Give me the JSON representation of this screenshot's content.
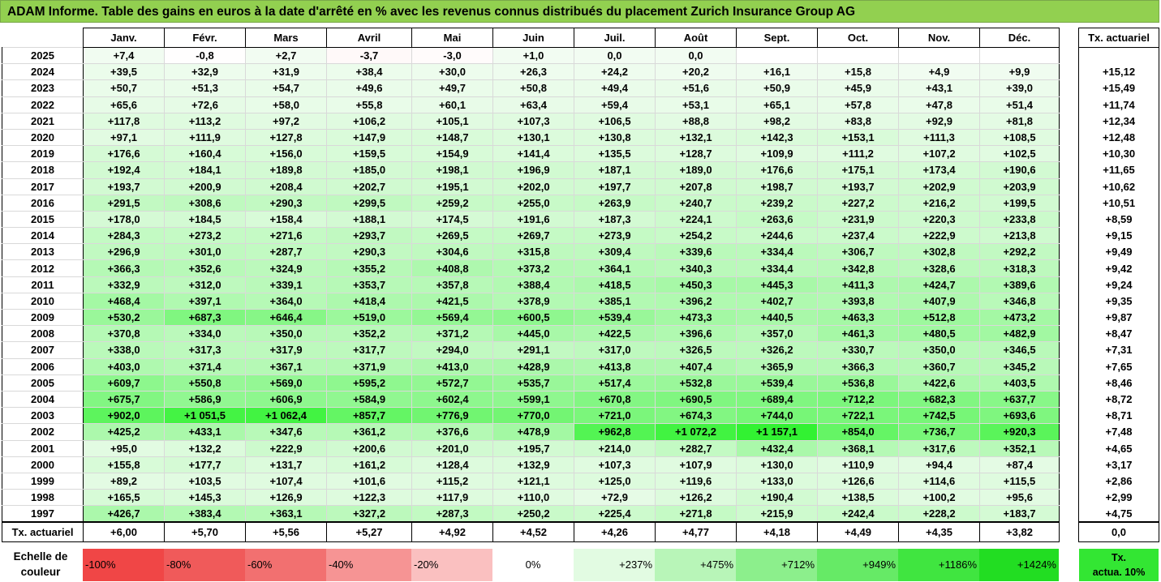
{
  "title": "ADAM Informe. Table des gains en euros à la date d'arrêté en % avec les revenus connus distribués du placement Zurich Insurance Group AG",
  "months": [
    "Janv.",
    "Févr.",
    "Mars",
    "Avril",
    "Mai",
    "Juin",
    "Juil.",
    "Août",
    "Sept.",
    "Oct.",
    "Nov.",
    "Déc."
  ],
  "side_header": "Tx. actuariel",
  "rows": [
    {
      "year": "2025",
      "values": [
        "+7,4",
        "-0,8",
        "+2,7",
        "-3,7",
        "-3,0",
        "+1,0",
        "0,0",
        "0,0",
        "",
        "",
        "",
        ""
      ],
      "tx": ""
    },
    {
      "year": "2024",
      "values": [
        "+39,5",
        "+32,9",
        "+31,9",
        "+38,4",
        "+30,0",
        "+26,3",
        "+24,2",
        "+20,2",
        "+16,1",
        "+15,8",
        "+4,9",
        "+9,9"
      ],
      "tx": "+15,12"
    },
    {
      "year": "2023",
      "values": [
        "+50,7",
        "+51,3",
        "+54,7",
        "+49,6",
        "+49,7",
        "+50,8",
        "+49,4",
        "+51,6",
        "+50,9",
        "+45,9",
        "+43,1",
        "+39,0"
      ],
      "tx": "+15,49"
    },
    {
      "year": "2022",
      "values": [
        "+65,6",
        "+72,6",
        "+58,0",
        "+55,8",
        "+60,1",
        "+63,4",
        "+59,4",
        "+53,1",
        "+65,1",
        "+57,8",
        "+47,8",
        "+51,4"
      ],
      "tx": "+11,74"
    },
    {
      "year": "2021",
      "values": [
        "+117,8",
        "+113,2",
        "+97,2",
        "+106,2",
        "+105,1",
        "+107,3",
        "+106,5",
        "+88,8",
        "+98,2",
        "+83,8",
        "+92,9",
        "+81,8"
      ],
      "tx": "+12,34"
    },
    {
      "year": "2020",
      "values": [
        "+97,1",
        "+111,9",
        "+127,8",
        "+147,9",
        "+148,7",
        "+130,1",
        "+130,8",
        "+132,1",
        "+142,3",
        "+153,1",
        "+111,3",
        "+108,5"
      ],
      "tx": "+12,48"
    },
    {
      "year": "2019",
      "values": [
        "+176,6",
        "+160,4",
        "+156,0",
        "+159,5",
        "+154,9",
        "+141,4",
        "+135,5",
        "+128,7",
        "+109,9",
        "+111,2",
        "+107,2",
        "+102,5"
      ],
      "tx": "+10,30"
    },
    {
      "year": "2018",
      "values": [
        "+192,4",
        "+184,1",
        "+189,8",
        "+185,0",
        "+198,1",
        "+196,9",
        "+187,1",
        "+189,0",
        "+176,6",
        "+175,1",
        "+173,4",
        "+190,6"
      ],
      "tx": "+11,65"
    },
    {
      "year": "2017",
      "values": [
        "+193,7",
        "+200,9",
        "+208,4",
        "+202,7",
        "+195,1",
        "+202,0",
        "+197,7",
        "+207,8",
        "+198,7",
        "+193,7",
        "+202,9",
        "+203,9"
      ],
      "tx": "+10,62"
    },
    {
      "year": "2016",
      "values": [
        "+291,5",
        "+308,6",
        "+290,3",
        "+299,5",
        "+259,2",
        "+255,0",
        "+263,9",
        "+240,7",
        "+239,2",
        "+227,2",
        "+216,2",
        "+199,5"
      ],
      "tx": "+10,51"
    },
    {
      "year": "2015",
      "values": [
        "+178,0",
        "+184,5",
        "+158,4",
        "+188,1",
        "+174,5",
        "+191,6",
        "+187,3",
        "+224,1",
        "+263,6",
        "+231,9",
        "+220,3",
        "+233,8"
      ],
      "tx": "+8,59"
    },
    {
      "year": "2014",
      "values": [
        "+284,3",
        "+273,2",
        "+271,6",
        "+293,7",
        "+269,5",
        "+269,7",
        "+273,9",
        "+254,2",
        "+244,6",
        "+237,4",
        "+222,9",
        "+213,8"
      ],
      "tx": "+9,15"
    },
    {
      "year": "2013",
      "values": [
        "+296,9",
        "+301,0",
        "+287,7",
        "+290,3",
        "+304,6",
        "+315,8",
        "+309,4",
        "+339,6",
        "+334,4",
        "+306,7",
        "+302,8",
        "+292,2"
      ],
      "tx": "+9,49"
    },
    {
      "year": "2012",
      "values": [
        "+366,3",
        "+352,6",
        "+324,9",
        "+355,2",
        "+408,8",
        "+373,2",
        "+364,1",
        "+340,3",
        "+334,4",
        "+342,8",
        "+328,6",
        "+318,3"
      ],
      "tx": "+9,42"
    },
    {
      "year": "2011",
      "values": [
        "+332,9",
        "+312,0",
        "+339,1",
        "+353,7",
        "+357,8",
        "+388,4",
        "+418,5",
        "+450,3",
        "+445,3",
        "+411,3",
        "+424,7",
        "+389,6"
      ],
      "tx": "+9,24"
    },
    {
      "year": "2010",
      "values": [
        "+468,4",
        "+397,1",
        "+364,0",
        "+418,4",
        "+421,5",
        "+378,9",
        "+385,1",
        "+396,2",
        "+402,7",
        "+393,8",
        "+407,9",
        "+346,8"
      ],
      "tx": "+9,35"
    },
    {
      "year": "2009",
      "values": [
        "+530,2",
        "+687,3",
        "+646,4",
        "+519,0",
        "+569,4",
        "+600,5",
        "+539,4",
        "+473,3",
        "+440,5",
        "+463,3",
        "+512,8",
        "+473,2"
      ],
      "tx": "+9,87"
    },
    {
      "year": "2008",
      "values": [
        "+370,8",
        "+334,0",
        "+350,0",
        "+352,2",
        "+371,2",
        "+445,0",
        "+422,5",
        "+396,6",
        "+357,0",
        "+461,3",
        "+480,5",
        "+482,9"
      ],
      "tx": "+8,47"
    },
    {
      "year": "2007",
      "values": [
        "+338,0",
        "+317,3",
        "+317,9",
        "+317,7",
        "+294,0",
        "+291,1",
        "+317,0",
        "+326,5",
        "+326,2",
        "+330,7",
        "+350,0",
        "+346,5"
      ],
      "tx": "+7,31"
    },
    {
      "year": "2006",
      "values": [
        "+403,0",
        "+371,4",
        "+367,1",
        "+371,9",
        "+413,0",
        "+428,9",
        "+413,8",
        "+407,4",
        "+365,9",
        "+366,3",
        "+360,7",
        "+345,2"
      ],
      "tx": "+7,65"
    },
    {
      "year": "2005",
      "values": [
        "+609,7",
        "+550,8",
        "+569,0",
        "+595,2",
        "+572,7",
        "+535,7",
        "+517,4",
        "+532,8",
        "+539,4",
        "+536,8",
        "+422,6",
        "+403,5"
      ],
      "tx": "+8,46"
    },
    {
      "year": "2004",
      "values": [
        "+675,7",
        "+586,9",
        "+606,9",
        "+584,9",
        "+602,4",
        "+599,1",
        "+670,8",
        "+690,5",
        "+689,4",
        "+712,2",
        "+682,3",
        "+637,7"
      ],
      "tx": "+8,72"
    },
    {
      "year": "2003",
      "values": [
        "+902,0",
        "+1 051,5",
        "+1 062,4",
        "+857,7",
        "+776,9",
        "+770,0",
        "+721,0",
        "+674,3",
        "+744,0",
        "+722,1",
        "+742,5",
        "+693,6"
      ],
      "tx": "+8,71"
    },
    {
      "year": "2002",
      "values": [
        "+425,2",
        "+433,1",
        "+347,6",
        "+361,2",
        "+376,6",
        "+478,9",
        "+962,8",
        "+1 072,2",
        "+1 157,1",
        "+854,0",
        "+736,7",
        "+920,3"
      ],
      "tx": "+7,48"
    },
    {
      "year": "2001",
      "values": [
        "+95,0",
        "+132,2",
        "+222,9",
        "+200,6",
        "+201,0",
        "+195,7",
        "+214,0",
        "+282,7",
        "+432,4",
        "+368,1",
        "+317,6",
        "+352,1"
      ],
      "tx": "+4,65"
    },
    {
      "year": "2000",
      "values": [
        "+155,8",
        "+177,7",
        "+131,7",
        "+161,2",
        "+128,4",
        "+132,9",
        "+107,3",
        "+107,9",
        "+130,0",
        "+110,9",
        "+94,4",
        "+87,4"
      ],
      "tx": "+3,17"
    },
    {
      "year": "1999",
      "values": [
        "+89,2",
        "+103,5",
        "+107,4",
        "+101,6",
        "+115,2",
        "+121,1",
        "+125,0",
        "+119,6",
        "+133,0",
        "+126,6",
        "+114,6",
        "+115,5"
      ],
      "tx": "+2,86"
    },
    {
      "year": "1998",
      "values": [
        "+165,5",
        "+145,3",
        "+126,9",
        "+122,3",
        "+117,9",
        "+110,0",
        "+72,9",
        "+126,2",
        "+190,4",
        "+138,5",
        "+100,2",
        "+95,6"
      ],
      "tx": "+2,99"
    },
    {
      "year": "1997",
      "values": [
        "+426,7",
        "+383,4",
        "+363,1",
        "+327,2",
        "+287,3",
        "+250,2",
        "+225,4",
        "+271,8",
        "+215,9",
        "+242,4",
        "+228,2",
        "+183,7"
      ],
      "tx": "+4,75"
    }
  ],
  "footer": {
    "label": "Tx. actuariel",
    "values": [
      "+6,00",
      "+5,70",
      "+5,56",
      "+5,27",
      "+4,92",
      "+4,52",
      "+4,26",
      "+4,77",
      "+4,18",
      "+4,49",
      "+4,35",
      "+3,82"
    ],
    "tx": "0,0"
  },
  "legend": {
    "label_line1": "Echelle de",
    "label_line2": "couleur",
    "items": [
      {
        "text": "-100%",
        "color": "#f04646",
        "kind": "neg"
      },
      {
        "text": "-80%",
        "color": "#f05a5a",
        "kind": "neg"
      },
      {
        "text": "-60%",
        "color": "#f27070",
        "kind": "neg"
      },
      {
        "text": "-40%",
        "color": "#f69494",
        "kind": "neg"
      },
      {
        "text": "-20%",
        "color": "#fac0c0",
        "kind": "neg"
      },
      {
        "text": "0%",
        "color": "#ffffff",
        "kind": "zero"
      },
      {
        "text": "+237%",
        "color": "#e2fbe2",
        "kind": "pos"
      },
      {
        "text": "+475%",
        "color": "#b8f5b8",
        "kind": "pos"
      },
      {
        "text": "+712%",
        "color": "#8cef8c",
        "kind": "pos"
      },
      {
        "text": "+949%",
        "color": "#66ea66",
        "kind": "pos"
      },
      {
        "text": "+1186%",
        "color": "#40e540",
        "kind": "pos"
      },
      {
        "text": "+1424%",
        "color": "#22dd22",
        "kind": "pos"
      }
    ],
    "actua_line1": "Tx.",
    "actua_line2": "actua. 10%"
  }
}
